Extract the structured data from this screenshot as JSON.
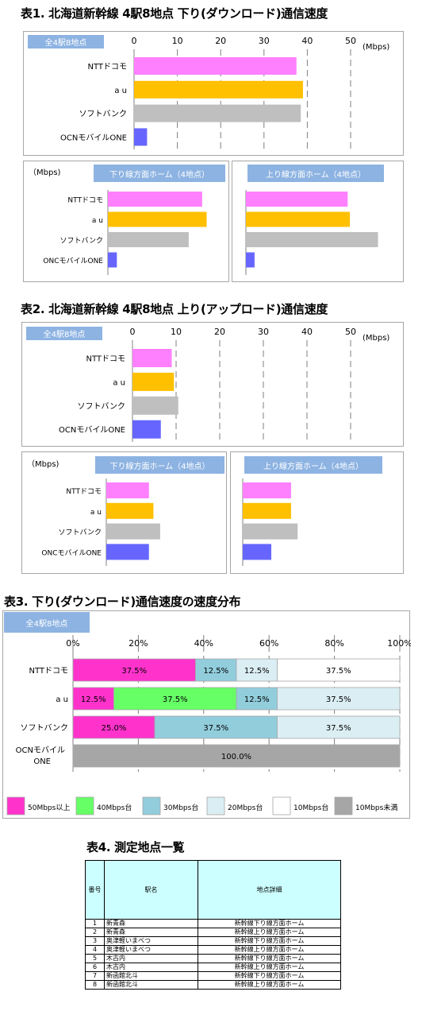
{
  "titles": {
    "t1": "表1. 北海道新幹線 4駅8地点 下り(ダウンロード)通信速度",
    "t2": "表2. 北海道新幹線 4駅8地点 上り(アップロード)通信速度",
    "t3": "表3. 下り(ダウンロード)通信速度の速度分布",
    "t4": "表4. 測定地点一覧"
  },
  "labels": {
    "all": "全4駅8地点",
    "down_home": "下り線方面ホーム（4地点）",
    "up_home": "上り線方面ホーム（4地点）",
    "mbps": "(Mbps)",
    "mbps_paren": "（Mbps)"
  },
  "colors": {
    "docomo": "#ff80ff",
    "au": "#ffc000",
    "softbank": "#bfbfbf",
    "ocn": "#6666ff",
    "c50": "#ff33cc",
    "c40": "#66ff66",
    "c30": "#92cddc",
    "c20": "#dbeef4",
    "c10": "#ffffff",
    "under10": "#a6a6a6"
  },
  "chart_data": [
    {
      "id": "t1_all",
      "type": "bar",
      "orientation": "horizontal",
      "categories": [
        "NTTドコモ",
        "a u",
        "ソフトバンク",
        "OCNモバイルONE"
      ],
      "values": [
        37.5,
        39,
        38.5,
        3
      ],
      "xlim": [
        0,
        50
      ],
      "ticks": [
        0,
        10,
        20,
        30,
        40,
        50
      ]
    },
    {
      "id": "t1_down",
      "type": "bar",
      "orientation": "horizontal",
      "categories": [
        "NTTドコモ",
        "a u",
        "ソフトバンク",
        "ONCモバイルONE"
      ],
      "values": [
        21,
        22,
        18,
        2
      ],
      "xlim": [
        0,
        50
      ]
    },
    {
      "id": "t1_up",
      "type": "bar",
      "orientation": "horizontal",
      "values": [
        23.5,
        24,
        30.5,
        2
      ],
      "xlim": [
        0,
        50
      ]
    },
    {
      "id": "t2_all",
      "type": "bar",
      "orientation": "horizontal",
      "categories": [
        "NTTドコモ",
        "a u",
        "ソフトバンク",
        "OCNモバイルONE"
      ],
      "values": [
        9,
        9.5,
        10.5,
        6.5
      ],
      "xlim": [
        0,
        50
      ],
      "ticks": [
        0,
        10,
        20,
        30,
        40,
        50
      ]
    },
    {
      "id": "t2_down",
      "type": "bar",
      "orientation": "horizontal",
      "categories": [
        "NTTドコモ",
        "a u",
        "ソフトバンク",
        "ONCモバイルONE"
      ],
      "values": [
        9.5,
        10.5,
        12,
        9.5
      ],
      "xlim": [
        0,
        50
      ]
    },
    {
      "id": "t2_up",
      "type": "bar",
      "orientation": "horizontal",
      "values": [
        11,
        11,
        12.5,
        6.5
      ],
      "xlim": [
        0,
        50
      ]
    },
    {
      "id": "t3_dist",
      "type": "bar",
      "orientation": "horizontal",
      "stacked": true,
      "categories": [
        "NTTドコモ",
        "a u",
        "ソフトバンク",
        "OCNモバイルONE"
      ],
      "xlim": [
        0,
        100
      ],
      "ticks": [
        "0%",
        "20%",
        "40%",
        "60%",
        "80%",
        "100%"
      ],
      "series": [
        {
          "name": "50Mbps以上",
          "values": [
            37.5,
            12.5,
            25.0,
            0
          ]
        },
        {
          "name": "40Mbps台",
          "values": [
            0,
            37.5,
            0,
            0
          ]
        },
        {
          "name": "30Mbps台",
          "values": [
            12.5,
            12.5,
            37.5,
            0
          ]
        },
        {
          "name": "20Mbps台",
          "values": [
            12.5,
            37.5,
            37.5,
            0
          ]
        },
        {
          "name": "10Mbps台",
          "values": [
            37.5,
            0,
            0,
            0
          ]
        },
        {
          "name": "10Mbps未満",
          "values": [
            0,
            0,
            0,
            100.0
          ]
        }
      ],
      "data_labels": [
        [
          "37.5%",
          "",
          "12.5%",
          "12.5%",
          "37.5%",
          ""
        ],
        [
          "12.5%",
          "37.5%",
          "12.5%",
          "37.5%",
          "",
          ""
        ],
        [
          "25.0%",
          "",
          "37.5%",
          "37.5%",
          "",
          ""
        ],
        [
          "",
          "",
          "",
          "",
          "",
          "100.0%"
        ]
      ]
    }
  ],
  "table4": {
    "headers": [
      "番号",
      "駅名",
      "地点詳細"
    ],
    "rows": [
      [
        "1",
        "新青森",
        "新幹線下り線方面ホーム"
      ],
      [
        "2",
        "新青森",
        "新幹線上り線方面ホーム"
      ],
      [
        "3",
        "奥津軽いまべつ",
        "新幹線下り線方面ホーム"
      ],
      [
        "4",
        "奥津軽いまべつ",
        "新幹線上り線方面ホーム"
      ],
      [
        "5",
        "木古内",
        "新幹線下り線方面ホーム"
      ],
      [
        "6",
        "木古内",
        "新幹線上り線方面ホーム"
      ],
      [
        "7",
        "新函館北斗",
        "新幹線下り線方面ホーム"
      ],
      [
        "8",
        "新函館北斗",
        "新幹線上り線方面ホーム"
      ]
    ]
  }
}
